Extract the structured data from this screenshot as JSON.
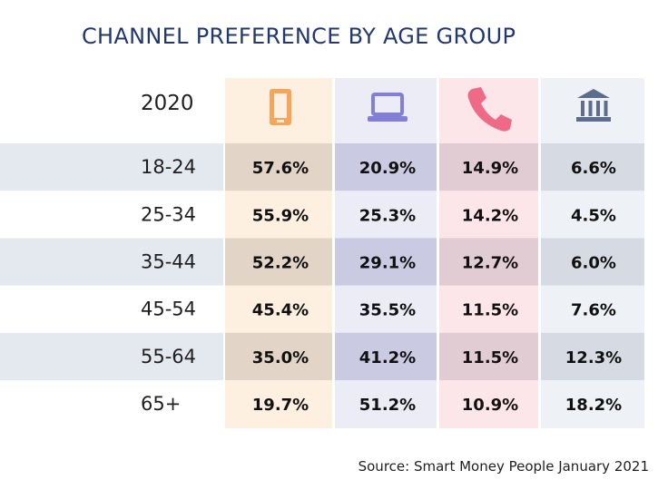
{
  "title": "CHANNEL PREFERENCE BY AGE GROUP",
  "source": "Source: Smart Money People January 2021",
  "year_label": "2020",
  "colors": {
    "title": "#23386e",
    "text": "#1f1f1f",
    "band": "#e4e8ef",
    "mobile_col": "#fdf0e1",
    "mobile_col_banded": "#e2d4c6",
    "online_col": "#ececf7",
    "online_col_banded": "#cacbe2",
    "phone_col": "#fde6ea",
    "phone_col_banded": "#e2ccd3",
    "branch_col": "#eef1f6",
    "branch_col_banded": "#d6dae3",
    "mobile_icon": "#f6a55a",
    "online_icon": "#8180d6",
    "phone_icon": "#ee6a86",
    "branch_icon": "#5d6b8c"
  },
  "chart_data": {
    "type": "table",
    "title": "CHANNEL PREFERENCE BY AGE GROUP",
    "year": "2020",
    "columns": [
      {
        "icon": "mobile-phone-icon"
      },
      {
        "icon": "laptop-icon"
      },
      {
        "icon": "telephone-icon"
      },
      {
        "icon": "bank-branch-icon"
      }
    ],
    "rows": [
      {
        "age": "18-24",
        "values": [
          "57.6%",
          "20.9%",
          "14.9%",
          "6.6%"
        ]
      },
      {
        "age": "25-34",
        "values": [
          "55.9%",
          "25.3%",
          "14.2%",
          "4.5%"
        ]
      },
      {
        "age": "35-44",
        "values": [
          "52.2%",
          "29.1%",
          "12.7%",
          "6.0%"
        ]
      },
      {
        "age": "45-54",
        "values": [
          "45.4%",
          "35.5%",
          "11.5%",
          "7.6%"
        ]
      },
      {
        "age": "55-64",
        "values": [
          "35.0%",
          "41.2%",
          "11.5%",
          "12.3%"
        ]
      },
      {
        "age": "65+",
        "values": [
          "19.7%",
          "51.2%",
          "10.9%",
          "18.2%"
        ]
      }
    ],
    "source": "Source: Smart Money People January 2021"
  }
}
